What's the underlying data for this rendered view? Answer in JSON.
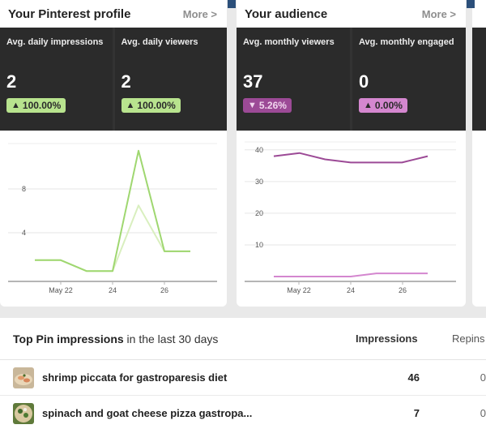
{
  "profile": {
    "title": "Your Pinterest profile",
    "more": "More >",
    "stats": [
      {
        "label": "Avg. daily impressions",
        "value": "2",
        "change": "100.00%",
        "direction": "up"
      },
      {
        "label": "Avg. daily viewers",
        "value": "2",
        "change": "100.00%",
        "direction": "up"
      }
    ]
  },
  "audience": {
    "title": "Your audience",
    "more": "More >",
    "stats": [
      {
        "label": "Avg. monthly viewers",
        "value": "37",
        "change": "5.26%",
        "direction": "down"
      },
      {
        "label": "Avg. monthly engaged",
        "value": "0",
        "change": "0.00%",
        "direction": "up"
      }
    ]
  },
  "top_pins": {
    "title_bold": "Top Pin impressions",
    "title_rest": " in the last 30 days",
    "col_impressions": "Impressions",
    "col_repins": "Repins",
    "rows": [
      {
        "name": "shrimp piccata for gastroparesis diet",
        "impressions": "46",
        "repins": "0"
      },
      {
        "name": "spinach and goat cheese pizza gastropa...",
        "impressions": "7",
        "repins": "0"
      }
    ]
  },
  "colors": {
    "green_dark": "#9fd770",
    "green_light": "#d9efbf",
    "purple_dark": "#9c4a96",
    "purple_light": "#d487cf"
  },
  "chart_data": [
    {
      "type": "line",
      "x_tick_labels": [
        "May 22",
        "24",
        "26"
      ],
      "ylim": [
        0,
        12
      ],
      "y_ticks": [
        4,
        8
      ],
      "grid": true,
      "series": [
        {
          "values": [
            1.5,
            1.5,
            0.5,
            0.5,
            11.5,
            2.3,
            2.3
          ],
          "color": "#9fd770"
        },
        {
          "values": [
            1.5,
            1.5,
            0.5,
            0.5,
            6.5,
            2.3,
            2.3
          ],
          "color": "#d9efbf"
        }
      ]
    },
    {
      "type": "line",
      "x_tick_labels": [
        "May 22",
        "24",
        "26"
      ],
      "ylim": [
        0,
        42
      ],
      "y_ticks": [
        10,
        20,
        30,
        40
      ],
      "grid": true,
      "series": [
        {
          "values": [
            38,
            39,
            37,
            36,
            36,
            36,
            38
          ],
          "color": "#9c4a96"
        },
        {
          "values": [
            0,
            0,
            0,
            0,
            1,
            1,
            1
          ],
          "color": "#d487cf"
        }
      ]
    }
  ]
}
